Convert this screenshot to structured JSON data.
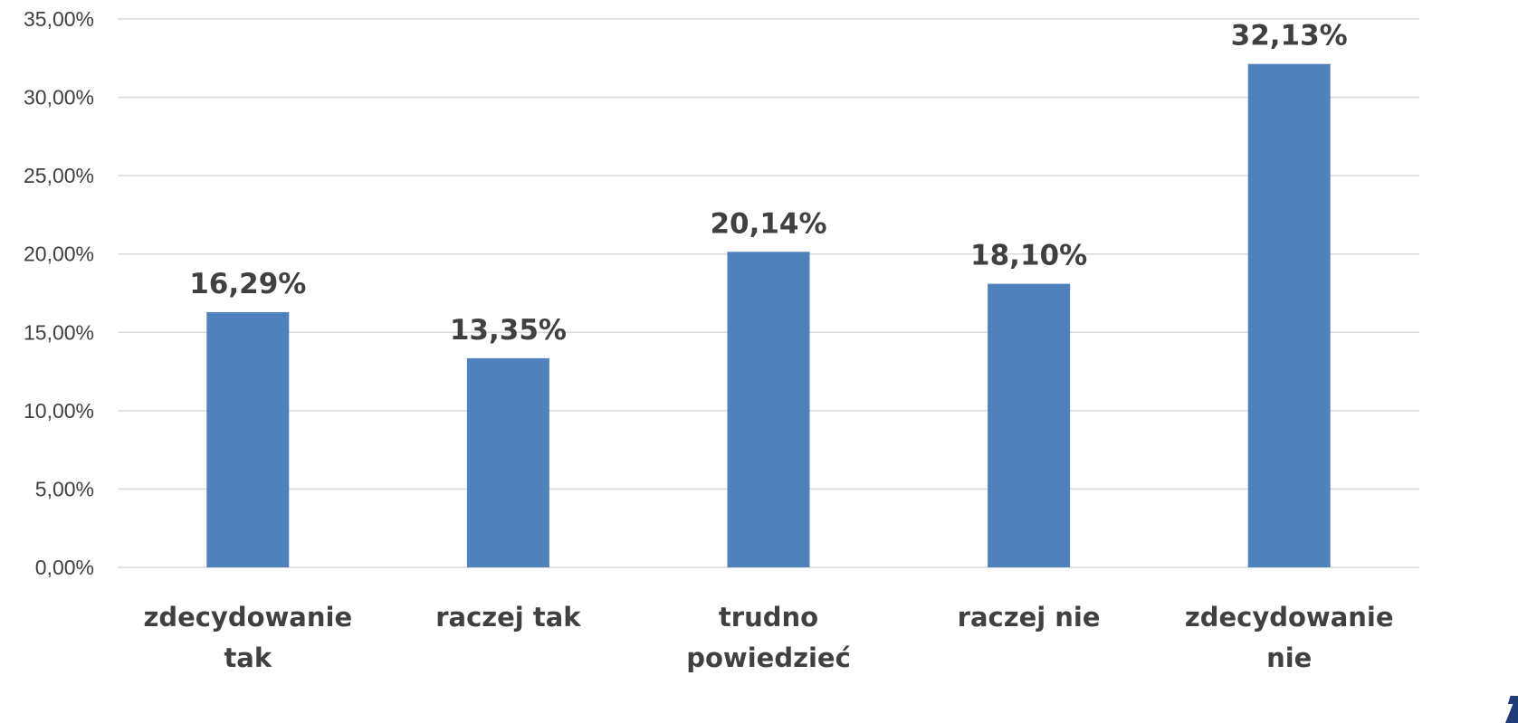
{
  "chart_data": {
    "type": "bar",
    "categories": [
      [
        "zdecydowanie",
        "tak"
      ],
      [
        "raczej tak"
      ],
      [
        "trudno",
        "powiedzieć"
      ],
      [
        "raczej nie"
      ],
      [
        "zdecydowanie",
        "nie"
      ]
    ],
    "values": [
      16.29,
      13.35,
      20.14,
      18.1,
      32.13
    ],
    "value_labels": [
      "16,29%",
      "13,35%",
      "20,14%",
      "18,10%",
      "32,13%"
    ],
    "y_ticks": [
      0,
      5,
      10,
      15,
      20,
      25,
      30,
      35
    ],
    "y_tick_labels": [
      "0,00%",
      "5,00%",
      "10,00%",
      "15,00%",
      "20,00%",
      "25,00%",
      "30,00%",
      "35,00%"
    ],
    "ylim": [
      0,
      35
    ],
    "title": "",
    "xlabel": "",
    "ylabel": "",
    "grid": true,
    "bar_color": "#4f81bd",
    "gridline_color": "#d9d9d9",
    "text_color": "#404040"
  }
}
